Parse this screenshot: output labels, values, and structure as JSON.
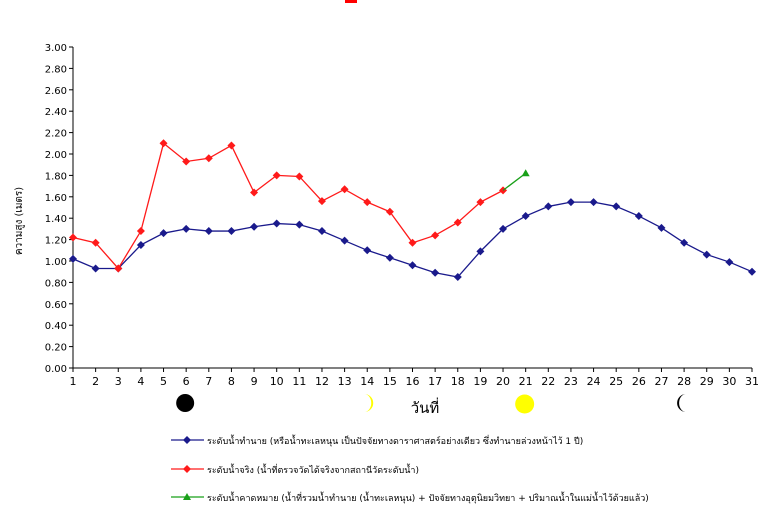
{
  "chart_data": {
    "type": "line",
    "xlabel": "วันที่",
    "ylabel": "ความสูง (เมตร)",
    "ylim": [
      0,
      3.0
    ],
    "yticks": [
      "0.00",
      "0.20",
      "0.40",
      "0.60",
      "0.80",
      "1.00",
      "1.20",
      "1.40",
      "1.60",
      "1.80",
      "2.00",
      "2.20",
      "2.40",
      "2.60",
      "2.80",
      "3.00"
    ],
    "categories": [
      "1",
      "2",
      "3",
      "4",
      "5",
      "6",
      "7",
      "8",
      "9",
      "10",
      "11",
      "12",
      "13",
      "14",
      "15",
      "16",
      "17",
      "18",
      "19",
      "20",
      "21",
      "22",
      "23",
      "24",
      "25",
      "26",
      "27",
      "28",
      "29",
      "30",
      "31"
    ],
    "grid": false,
    "legend_position": "bottom",
    "series": [
      {
        "name": "ระดับน้ำทำนาย  (หรือน้ำทะเลหนุน  เป็นปัจจัยทางดาราศาสตร์อย่างเดียว ซึ่งทำนายล่วงหน้าไว้ 1 ปี)",
        "color": "#1a1a8c",
        "marker": "diamond",
        "x": [
          1,
          2,
          3,
          4,
          5,
          6,
          7,
          8,
          9,
          10,
          11,
          12,
          13,
          14,
          15,
          16,
          17,
          18,
          19,
          20,
          21,
          22,
          23,
          24,
          25,
          26,
          27,
          28,
          29,
          30,
          31
        ],
        "values": [
          1.02,
          0.93,
          0.93,
          1.15,
          1.26,
          1.3,
          1.28,
          1.28,
          1.32,
          1.35,
          1.34,
          1.28,
          1.19,
          1.1,
          1.03,
          0.96,
          0.89,
          0.85,
          1.09,
          1.3,
          1.42,
          1.51,
          1.55,
          1.55,
          1.51,
          1.42,
          1.31,
          1.17,
          1.06,
          0.99,
          0.9
        ]
      },
      {
        "name": "ระดับน้ำจริง (น้ำที่ตรวจวัดได้จริงจากสถานีวัดระดับน้ำ)",
        "color": "#ff1a1a",
        "marker": "diamond",
        "x": [
          1,
          2,
          3,
          4,
          5,
          6,
          7,
          8,
          9,
          10,
          11,
          12,
          13,
          14,
          15,
          16,
          17,
          18,
          19,
          20
        ],
        "values": [
          1.22,
          1.17,
          0.93,
          1.28,
          2.1,
          1.93,
          1.96,
          2.08,
          1.64,
          1.8,
          1.79,
          1.56,
          1.67,
          1.55,
          1.46,
          1.17,
          1.24,
          1.36,
          1.55,
          1.66
        ]
      },
      {
        "name": "ระดับน้ำคาดหมาย (น้ำที่รวมน้ำทำนาย (น้ำทะเลหนุน) + ปัจจัยทางอุตุนิยมวิทยา + ปริมาณน้ำในแม่น้ำไว้ด้วยแล้ว)",
        "color": "#19a019",
        "marker": "triangle",
        "x": [
          20,
          21
        ],
        "values": [
          1.66,
          1.82
        ]
      }
    ],
    "moon_phases": [
      {
        "day": 6,
        "phase": "new-moon"
      },
      {
        "day": 14,
        "phase": "first-quarter"
      },
      {
        "day": 21,
        "phase": "full-moon"
      },
      {
        "day": 28,
        "phase": "last-quarter"
      }
    ]
  }
}
